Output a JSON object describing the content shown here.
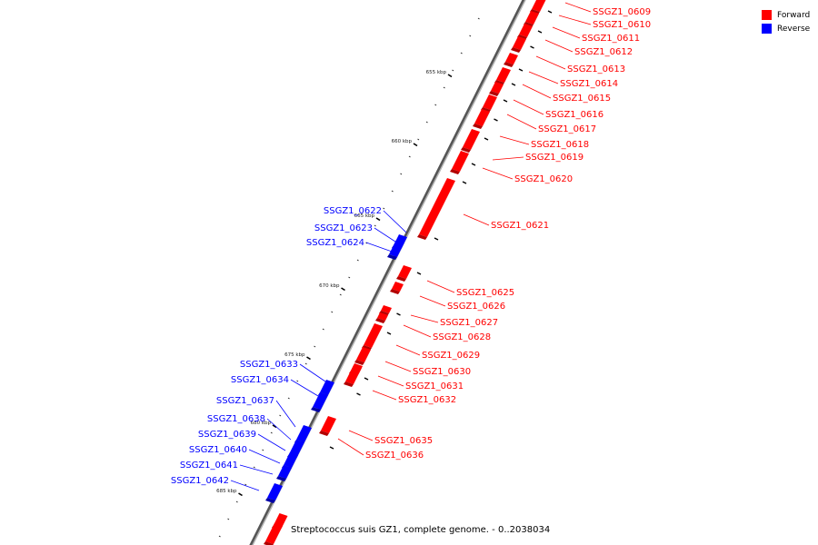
{
  "colors": {
    "forward": "#ff0000",
    "reverse": "#0000ff",
    "backbone": "#555555"
  },
  "legend": {
    "forward_label": "Forward",
    "reverse_label": "Reverse"
  },
  "caption": "Streptococcus suis GZ1, complete genome. - 0..2038034",
  "ticks": [
    {
      "label": "655 kbp"
    },
    {
      "label": "660 kbp"
    },
    {
      "label": "665 kbp"
    },
    {
      "label": "670 kbp"
    },
    {
      "label": "675 kbp"
    },
    {
      "label": "680 kbp"
    },
    {
      "label": "685 kbp"
    }
  ],
  "forward_genes": [
    {
      "name": "SSGZ1_0609"
    },
    {
      "name": "SSGZ1_0610"
    },
    {
      "name": "SSGZ1_0611"
    },
    {
      "name": "SSGZ1_0612"
    },
    {
      "name": "SSGZ1_0613"
    },
    {
      "name": "SSGZ1_0614"
    },
    {
      "name": "SSGZ1_0615"
    },
    {
      "name": "SSGZ1_0616"
    },
    {
      "name": "SSGZ1_0617"
    },
    {
      "name": "SSGZ1_0618"
    },
    {
      "name": "SSGZ1_0619"
    },
    {
      "name": "SSGZ1_0620"
    },
    {
      "name": "SSGZ1_0621"
    },
    {
      "name": "SSGZ1_0625"
    },
    {
      "name": "SSGZ1_0626"
    },
    {
      "name": "SSGZ1_0627"
    },
    {
      "name": "SSGZ1_0628"
    },
    {
      "name": "SSGZ1_0629"
    },
    {
      "name": "SSGZ1_0630"
    },
    {
      "name": "SSGZ1_0631"
    },
    {
      "name": "SSGZ1_0632"
    },
    {
      "name": "SSGZ1_0635"
    },
    {
      "name": "SSGZ1_0636"
    }
  ],
  "reverse_genes": [
    {
      "name": "SSGZ1_0622"
    },
    {
      "name": "SSGZ1_0623"
    },
    {
      "name": "SSGZ1_0624"
    },
    {
      "name": "SSGZ1_0633"
    },
    {
      "name": "SSGZ1_0634"
    },
    {
      "name": "SSGZ1_0637"
    },
    {
      "name": "SSGZ1_0638"
    },
    {
      "name": "SSGZ1_0639"
    },
    {
      "name": "SSGZ1_0640"
    },
    {
      "name": "SSGZ1_0641"
    },
    {
      "name": "SSGZ1_0642"
    }
  ]
}
